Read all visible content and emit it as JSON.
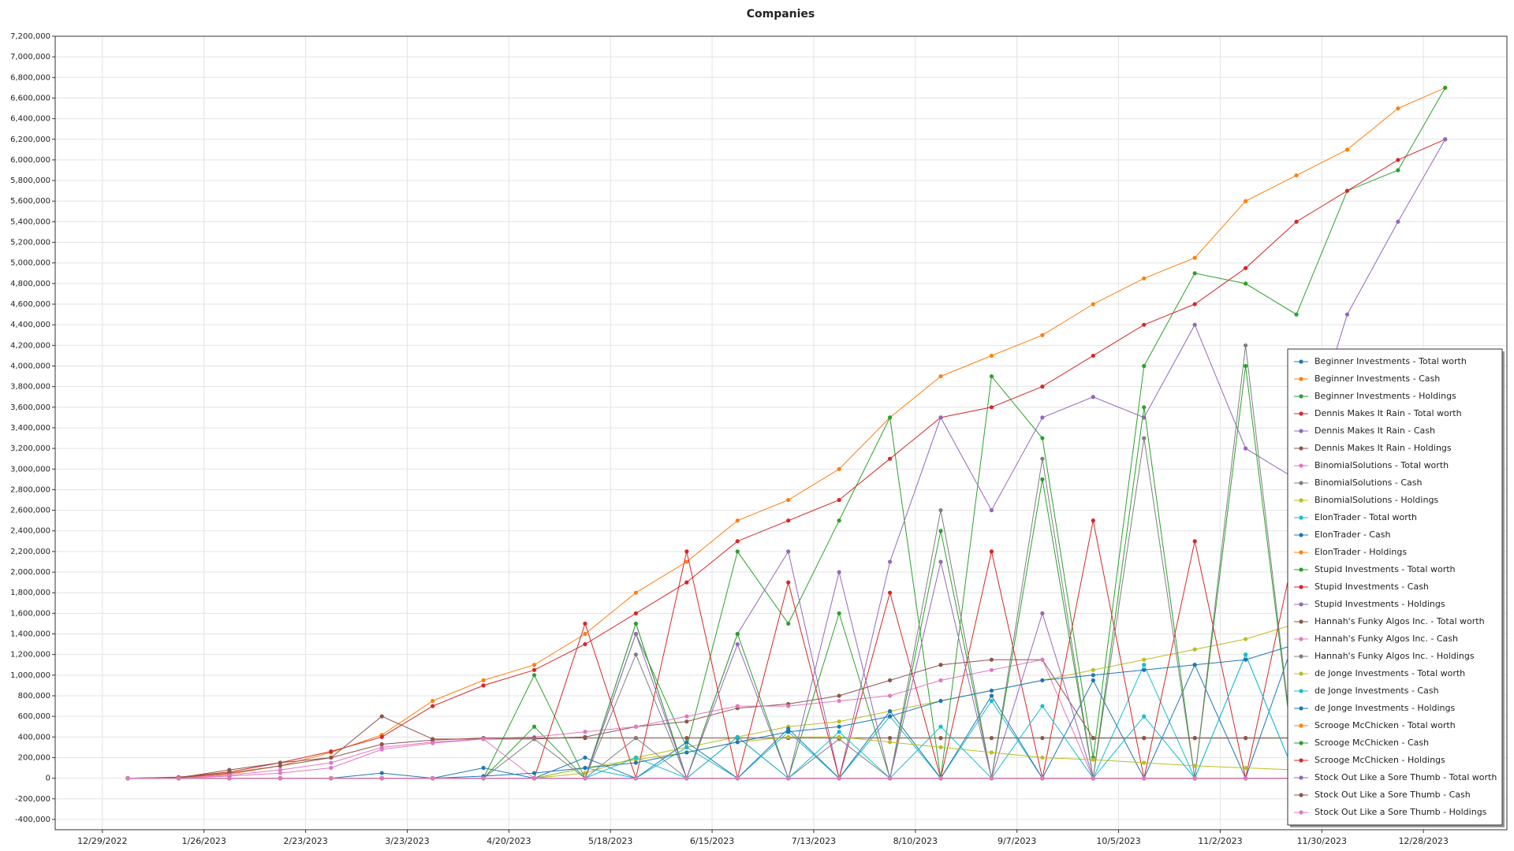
{
  "chart_data": {
    "type": "line",
    "title": "Companies",
    "legend": "lower right",
    "grid": true,
    "xlim": [
      "2022-12-16",
      "2024-01-20"
    ],
    "xticks": [
      {
        "value": "2022-12-29",
        "label": "12/29/2022"
      },
      {
        "value": "2023-01-26",
        "label": "1/26/2023"
      },
      {
        "value": "2023-02-23",
        "label": "2/23/2023"
      },
      {
        "value": "2023-03-23",
        "label": "3/23/2023"
      },
      {
        "value": "2023-04-20",
        "label": "4/20/2023"
      },
      {
        "value": "2023-05-18",
        "label": "5/18/2023"
      },
      {
        "value": "2023-06-15",
        "label": "6/15/2023"
      },
      {
        "value": "2023-07-13",
        "label": "7/13/2023"
      },
      {
        "value": "2023-08-10",
        "label": "8/10/2023"
      },
      {
        "value": "2023-09-07",
        "label": "9/7/2023"
      },
      {
        "value": "2023-10-05",
        "label": "10/5/2023"
      },
      {
        "value": "2023-11-02",
        "label": "11/2/2023"
      },
      {
        "value": "2023-11-30",
        "label": "11/30/2023"
      },
      {
        "value": "2023-12-28",
        "label": "12/28/2023"
      }
    ],
    "ylim": [
      -500000,
      7200000
    ],
    "yticks": [
      {
        "value": -400000,
        "label": "-400,000"
      },
      {
        "value": -200000,
        "label": "-200,000"
      },
      0,
      {
        "value": 200000,
        "label": "200,000"
      },
      {
        "value": 400000,
        "label": "400,000"
      },
      {
        "value": 600000,
        "label": "600,000"
      },
      {
        "value": 800000,
        "label": "800,000"
      },
      {
        "value": 1000000,
        "label": "1,000,000"
      },
      {
        "value": 1200000,
        "label": "1,200,000"
      },
      {
        "value": 1400000,
        "label": "1,400,000"
      },
      {
        "value": 1600000,
        "label": "1,600,000"
      },
      {
        "value": 1800000,
        "label": "1,800,000"
      },
      {
        "value": 2000000,
        "label": "2,000,000"
      },
      {
        "value": 2200000,
        "label": "2,200,000"
      },
      {
        "value": 2400000,
        "label": "2,400,000"
      },
      {
        "value": 2600000,
        "label": "2,600,000"
      },
      {
        "value": 2800000,
        "label": "2,800,000"
      },
      {
        "value": 3000000,
        "label": "3,000,000"
      },
      {
        "value": 3200000,
        "label": "3,200,000"
      },
      {
        "value": 3400000,
        "label": "3,400,000"
      },
      {
        "value": 3600000,
        "label": "3,600,000"
      },
      {
        "value": 3800000,
        "label": "3,800,000"
      },
      {
        "value": 4000000,
        "label": "4,000,000"
      },
      {
        "value": 4200000,
        "label": "4,200,000"
      },
      {
        "value": 4400000,
        "label": "4,400,000"
      },
      {
        "value": 4600000,
        "label": "4,600,000"
      },
      {
        "value": 4800000,
        "label": "4,800,000"
      },
      {
        "value": 5000000,
        "label": "5,000,000"
      },
      {
        "value": 5200000,
        "label": "5,200,000"
      },
      {
        "value": 5400000,
        "label": "5,400,000"
      },
      {
        "value": 5600000,
        "label": "5,600,000"
      },
      {
        "value": 5800000,
        "label": "5,800,000"
      },
      {
        "value": 6000000,
        "label": "6,000,000"
      },
      {
        "value": 6200000,
        "label": "6,200,000"
      },
      {
        "value": 6400000,
        "label": "6,400,000"
      },
      {
        "value": 6600000,
        "label": "6,600,000"
      },
      {
        "value": 6800000,
        "label": "6,800,000"
      },
      {
        "value": 7000000,
        "label": "7,000,000"
      },
      {
        "value": 7200000,
        "label": "7,200,000"
      }
    ],
    "x": [
      "2023-01-05",
      "2023-01-19",
      "2023-02-02",
      "2023-02-16",
      "2023-03-02",
      "2023-03-16",
      "2023-03-30",
      "2023-04-13",
      "2023-04-27",
      "2023-05-11",
      "2023-05-25",
      "2023-06-08",
      "2023-06-22",
      "2023-07-06",
      "2023-07-20",
      "2023-08-03",
      "2023-08-17",
      "2023-08-31",
      "2023-09-14",
      "2023-09-28",
      "2023-10-12",
      "2023-10-26",
      "2023-11-09",
      "2023-11-23",
      "2023-12-07",
      "2023-12-21",
      "2024-01-03"
    ],
    "series": [
      {
        "name": "Beginner Investments - Total worth",
        "color": "#1f77b4",
        "values": [
          0,
          0,
          0,
          0,
          0,
          0,
          0,
          0,
          0,
          0,
          0,
          0,
          0,
          0,
          0,
          0,
          0,
          0,
          0,
          0,
          0,
          0,
          0,
          0,
          0,
          0,
          0
        ]
      },
      {
        "name": "Beginner Investments - Cash",
        "color": "#ff7f0e",
        "values": [
          0,
          5000,
          40000,
          120000,
          250000,
          420000,
          750000,
          950000,
          1100000,
          1400000,
          1800000,
          2100000,
          2500000,
          2700000,
          3000000,
          3500000,
          3900000,
          4100000,
          4300000,
          4600000,
          4850000,
          5050000,
          5600000,
          5850000,
          6100000,
          6500000,
          6700000
        ]
      },
      {
        "name": "Beginner Investments - Holdings",
        "color": "#2ca02c",
        "values": [
          0,
          0,
          0,
          0,
          0,
          0,
          0,
          0,
          500000,
          0,
          1400000,
          300000,
          2200000,
          1500000,
          2500000,
          3500000,
          0,
          3900000,
          3300000,
          200000,
          4000000,
          4900000,
          4800000,
          4500000,
          5700000,
          5900000,
          6700000
        ]
      },
      {
        "name": "Dennis Makes It Rain - Total worth",
        "color": "#d62728",
        "values": [
          0,
          10000,
          60000,
          150000,
          260000,
          400000,
          700000,
          900000,
          1050000,
          1300000,
          1600000,
          1900000,
          2300000,
          2500000,
          2700000,
          3100000,
          3500000,
          3600000,
          3800000,
          4100000,
          4400000,
          4600000,
          4950000,
          5400000,
          5700000,
          6000000,
          6200000
        ]
      },
      {
        "name": "Dennis Makes It Rain - Cash",
        "color": "#9467bd",
        "values": [
          0,
          0,
          0,
          0,
          0,
          0,
          0,
          0,
          0,
          0,
          1500000,
          0,
          1400000,
          2200000,
          0,
          2100000,
          3500000,
          2600000,
          3500000,
          3700000,
          3500000,
          4400000,
          3200000,
          2900000,
          4500000,
          5400000,
          6200000
        ]
      },
      {
        "name": "Dennis Makes It Rain - Holdings",
        "color": "#8c564b",
        "values": [
          0,
          5000,
          50000,
          120000,
          200000,
          600000,
          380000,
          380000,
          380000,
          400000,
          500000,
          550000,
          680000,
          720000,
          800000,
          950000,
          1100000,
          1150000,
          1150000,
          390000,
          390000,
          390000,
          390000,
          390000,
          390000,
          390000,
          390000
        ]
      },
      {
        "name": "BinomialSolutions - Total worth",
        "color": "#e377c2",
        "values": [
          0,
          0,
          30000,
          80000,
          150000,
          300000,
          350000,
          380000,
          400000,
          450000,
          500000,
          600000,
          700000,
          700000,
          750000,
          800000,
          950000,
          1050000,
          1150000,
          0,
          0,
          0,
          0,
          0,
          0,
          0,
          0
        ]
      },
      {
        "name": "BinomialSolutions - Cash",
        "color": "#7f7f7f",
        "values": [
          0,
          0,
          0,
          0,
          0,
          0,
          0,
          0,
          0,
          0,
          1200000,
          0,
          0,
          0,
          0,
          0,
          0,
          0,
          0,
          0,
          0,
          0,
          0,
          0,
          0,
          0,
          0
        ]
      },
      {
        "name": "BinomialSolutions - Holdings",
        "color": "#bcbd22",
        "values": [
          0,
          0,
          0,
          0,
          0,
          0,
          0,
          0,
          0,
          50000,
          200000,
          300000,
          400000,
          500000,
          550000,
          650000,
          750000,
          850000,
          950000,
          1050000,
          1150000,
          1250000,
          1350000,
          1500000,
          1600000,
          1650000,
          1700000
        ]
      },
      {
        "name": "ElonTrader - Total worth",
        "color": "#17becf",
        "values": [
          0,
          0,
          0,
          0,
          0,
          0,
          0,
          0,
          0,
          100000,
          0,
          300000,
          0,
          450000,
          0,
          600000,
          0,
          750000,
          0,
          0,
          1100000,
          0,
          1200000,
          0,
          0,
          0,
          0
        ]
      },
      {
        "name": "ElonTrader - Cash",
        "color": "#1f77b4",
        "values": [
          0,
          0,
          0,
          0,
          0,
          50000,
          0,
          100000,
          0,
          200000,
          0,
          350000,
          0,
          480000,
          0,
          650000,
          0,
          800000,
          0,
          950000,
          0,
          1100000,
          0,
          1400000,
          0,
          0,
          0
        ]
      },
      {
        "name": "ElonTrader - Holdings",
        "color": "#ff7f0e",
        "values": [
          0,
          0,
          0,
          0,
          0,
          0,
          0,
          0,
          0,
          0,
          0,
          0,
          0,
          0,
          0,
          0,
          0,
          0,
          0,
          0,
          0,
          0,
          0,
          0,
          0,
          0,
          0
        ]
      },
      {
        "name": "Stupid Investments - Total worth",
        "color": "#2ca02c",
        "values": [
          0,
          0,
          0,
          0,
          0,
          0,
          0,
          0,
          1000000,
          0,
          1500000,
          0,
          1400000,
          0,
          1600000,
          0,
          2400000,
          0,
          2900000,
          0,
          3600000,
          0,
          4000000,
          0,
          0,
          0,
          0
        ]
      },
      {
        "name": "Stupid Investments - Cash",
        "color": "#d62728",
        "values": [
          0,
          0,
          0,
          0,
          0,
          0,
          0,
          0,
          0,
          1500000,
          0,
          2200000,
          0,
          1900000,
          0,
          1800000,
          0,
          2200000,
          0,
          2500000,
          0,
          2300000,
          0,
          2300000,
          0,
          0,
          0
        ]
      },
      {
        "name": "Stupid Investments - Holdings",
        "color": "#9467bd",
        "values": [
          0,
          0,
          0,
          0,
          0,
          0,
          0,
          0,
          0,
          0,
          1400000,
          0,
          1300000,
          0,
          2000000,
          0,
          2100000,
          0,
          1600000,
          0,
          0,
          0,
          0,
          0,
          0,
          0,
          0
        ]
      },
      {
        "name": "Hannah's Funky Algos Inc. - Total worth",
        "color": "#8c564b",
        "values": [
          0,
          5000,
          80000,
          150000,
          200000,
          330000,
          370000,
          390000,
          390000,
          390000,
          390000,
          390000,
          390000,
          390000,
          390000,
          390000,
          390000,
          390000,
          390000,
          390000,
          390000,
          390000,
          390000,
          390000,
          390000,
          390000,
          390000
        ]
      },
      {
        "name": "Hannah's Funky Algos Inc. - Cash",
        "color": "#e377c2",
        "values": [
          0,
          0,
          20000,
          50000,
          100000,
          280000,
          340000,
          380000,
          0,
          0,
          0,
          0,
          0,
          0,
          0,
          0,
          0,
          0,
          0,
          0,
          0,
          0,
          0,
          0,
          0,
          0,
          0
        ]
      },
      {
        "name": "Hannah's Funky Algos Inc. - Holdings",
        "color": "#7f7f7f",
        "values": [
          0,
          0,
          0,
          0,
          0,
          0,
          0,
          0,
          380000,
          0,
          390000,
          0,
          400000,
          0,
          380000,
          0,
          2600000,
          0,
          3100000,
          0,
          3300000,
          0,
          4200000,
          0,
          0,
          0,
          0
        ]
      },
      {
        "name": "de Jonge Investments - Total worth",
        "color": "#bcbd22",
        "values": [
          0,
          0,
          0,
          0,
          0,
          0,
          0,
          0,
          0,
          100000,
          180000,
          250000,
          350000,
          400000,
          400000,
          350000,
          300000,
          250000,
          200000,
          180000,
          150000,
          120000,
          100000,
          80000,
          50000,
          30000,
          20000
        ]
      },
      {
        "name": "de Jonge Investments - Cash",
        "color": "#17becf",
        "values": [
          0,
          0,
          0,
          0,
          0,
          0,
          0,
          0,
          0,
          0,
          200000,
          0,
          400000,
          0,
          450000,
          0,
          500000,
          0,
          700000,
          0,
          600000,
          0,
          1200000,
          0,
          1400000,
          0,
          0
        ]
      },
      {
        "name": "de Jonge Investments - Holdings",
        "color": "#1f77b4",
        "values": [
          0,
          0,
          0,
          0,
          0,
          0,
          0,
          20000,
          50000,
          100000,
          150000,
          250000,
          350000,
          450000,
          500000,
          600000,
          750000,
          850000,
          950000,
          1000000,
          1050000,
          1100000,
          1150000,
          1300000,
          1400000,
          0,
          0
        ]
      },
      {
        "name": "Scrooge McChicken - Total worth",
        "color": "#ff7f0e",
        "values": [
          0,
          0,
          0,
          0,
          0,
          0,
          0,
          0,
          0,
          0,
          0,
          0,
          0,
          0,
          0,
          0,
          0,
          0,
          0,
          0,
          0,
          0,
          0,
          0,
          0,
          0,
          0
        ]
      },
      {
        "name": "Scrooge McChicken - Cash",
        "color": "#2ca02c",
        "values": [
          0,
          0,
          0,
          0,
          0,
          0,
          0,
          0,
          0,
          0,
          0,
          0,
          0,
          0,
          0,
          0,
          0,
          0,
          0,
          0,
          0,
          0,
          0,
          0,
          0,
          0,
          0
        ]
      },
      {
        "name": "Scrooge McChicken - Holdings",
        "color": "#d62728",
        "values": [
          0,
          0,
          0,
          0,
          0,
          0,
          0,
          0,
          0,
          0,
          0,
          0,
          0,
          0,
          0,
          0,
          0,
          0,
          0,
          0,
          0,
          0,
          0,
          0,
          0,
          0,
          0
        ]
      },
      {
        "name": "Stock Out Like a Sore Thumb - Total worth",
        "color": "#9467bd",
        "values": [
          0,
          0,
          0,
          0,
          0,
          0,
          0,
          0,
          0,
          0,
          0,
          0,
          0,
          0,
          0,
          0,
          0,
          0,
          0,
          0,
          0,
          0,
          0,
          0,
          0,
          0,
          0
        ]
      },
      {
        "name": "Stock Out Like a Sore Thumb - Cash",
        "color": "#8c564b",
        "values": [
          0,
          0,
          0,
          0,
          0,
          0,
          0,
          0,
          0,
          0,
          0,
          0,
          0,
          0,
          0,
          0,
          0,
          0,
          0,
          0,
          0,
          0,
          0,
          0,
          0,
          0,
          0
        ]
      },
      {
        "name": "Stock Out Like a Sore Thumb - Holdings",
        "color": "#e377c2",
        "values": [
          0,
          0,
          0,
          0,
          0,
          0,
          0,
          0,
          0,
          0,
          0,
          0,
          0,
          0,
          0,
          0,
          0,
          0,
          0,
          0,
          0,
          0,
          0,
          0,
          0,
          0,
          0
        ]
      }
    ]
  }
}
